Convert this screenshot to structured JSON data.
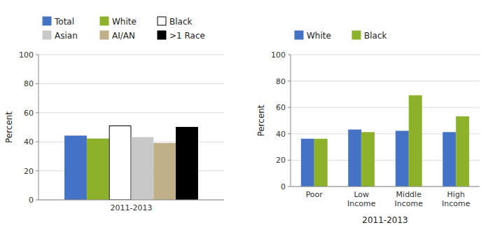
{
  "chart_data": [
    {
      "type": "bar",
      "categories": [
        "2011-2013"
      ],
      "series": [
        {
          "name": "Total",
          "color": "#4472C4",
          "values": [
            44
          ]
        },
        {
          "name": "White",
          "color": "#8DB12A",
          "values": [
            42
          ]
        },
        {
          "name": "Black",
          "color": "#FFFFFF",
          "values": [
            51
          ]
        },
        {
          "name": "Asian",
          "color": "#C8C8C8",
          "values": [
            43
          ]
        },
        {
          "name": "AI/AN",
          "color": "#BFB08A",
          "values": [
            39
          ]
        },
        {
          "name": ">1 Race",
          "color": "#000000",
          "values": [
            50
          ]
        }
      ],
      "y_label": "Percent",
      "ylim": [
        0,
        100
      ],
      "yticks": [
        0,
        20,
        40,
        60,
        80,
        100
      ],
      "grid": true,
      "legend": "top"
    },
    {
      "type": "bar",
      "categories": [
        "Poor",
        "Low\nIncome",
        "Middle\nIncome",
        "High\nIncome"
      ],
      "x_label": "2011-2013",
      "series": [
        {
          "name": "White",
          "color": "#4472C4",
          "values": [
            36,
            43,
            42,
            41
          ]
        },
        {
          "name": "Black",
          "color": "#8DB12A",
          "values": [
            36,
            41,
            69,
            53
          ]
        }
      ],
      "y_label": "Percent",
      "ylim": [
        0,
        100
      ],
      "yticks": [
        0,
        20,
        40,
        60,
        80,
        100
      ],
      "grid": true,
      "legend": "top"
    }
  ]
}
